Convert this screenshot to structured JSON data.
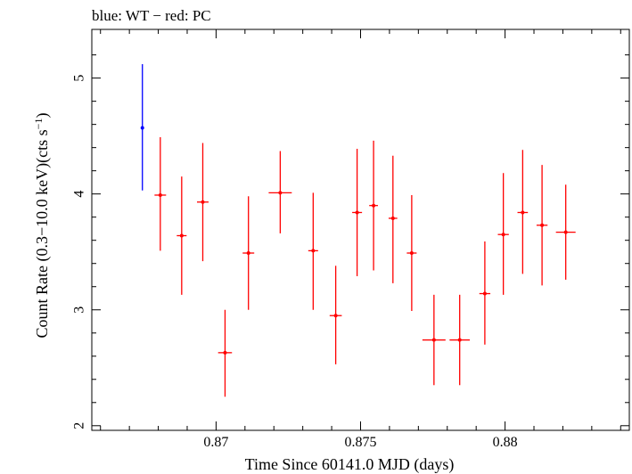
{
  "chart_data": {
    "type": "scatter",
    "title": "blue: WT − red: PC",
    "xlabel": "Time Since 60141.0 MJD (days)",
    "ylabel_main": "Count Rate (0.3−10.0 keV)(cts s",
    "ylabel_sup": "−1",
    "ylabel_tail": ")",
    "xlim": [
      0.8657,
      0.8843
    ],
    "ylim": [
      1.96,
      5.42
    ],
    "xticks": [
      0.87,
      0.875,
      0.88
    ],
    "xtick_labels": [
      "0.87",
      "0.875",
      "0.88"
    ],
    "yticks": [
      2,
      3,
      4,
      5
    ],
    "ytick_labels": [
      "2",
      "3",
      "4",
      "5"
    ],
    "grid": false,
    "series": [
      {
        "name": "WT",
        "color": "#0000ff",
        "points": [
          {
            "x": 0.86745,
            "xerr": 5e-05,
            "y": 4.57,
            "ylo": 4.03,
            "yhi": 5.12
          }
        ]
      },
      {
        "name": "PC",
        "color": "#ff0000",
        "points": [
          {
            "x": 0.86807,
            "xerr": 0.0002,
            "y": 3.99,
            "ylo": 3.51,
            "yhi": 4.49
          },
          {
            "x": 0.86881,
            "xerr": 0.00017,
            "y": 3.64,
            "ylo": 3.13,
            "yhi": 4.15
          },
          {
            "x": 0.86954,
            "xerr": 0.0002,
            "y": 3.93,
            "ylo": 3.42,
            "yhi": 4.44
          },
          {
            "x": 0.87031,
            "xerr": 0.00024,
            "y": 2.63,
            "ylo": 2.25,
            "yhi": 3.0
          },
          {
            "x": 0.87112,
            "xerr": 0.0002,
            "y": 3.49,
            "ylo": 3.0,
            "yhi": 3.98
          },
          {
            "x": 0.87222,
            "xerr": 0.0004,
            "y": 4.01,
            "ylo": 3.66,
            "yhi": 4.37
          },
          {
            "x": 0.87336,
            "xerr": 0.00017,
            "y": 3.51,
            "ylo": 3.0,
            "yhi": 4.01
          },
          {
            "x": 0.87414,
            "xerr": 0.00021,
            "y": 2.95,
            "ylo": 2.53,
            "yhi": 3.38
          },
          {
            "x": 0.87488,
            "xerr": 0.00017,
            "y": 3.84,
            "ylo": 3.29,
            "yhi": 4.39
          },
          {
            "x": 0.87545,
            "xerr": 0.00015,
            "y": 3.9,
            "ylo": 3.34,
            "yhi": 4.46
          },
          {
            "x": 0.87612,
            "xerr": 0.00015,
            "y": 3.79,
            "ylo": 3.23,
            "yhi": 4.33
          },
          {
            "x": 0.87677,
            "xerr": 0.00017,
            "y": 3.49,
            "ylo": 2.99,
            "yhi": 3.99
          },
          {
            "x": 0.87754,
            "xerr": 0.0004,
            "y": 2.74,
            "ylo": 2.35,
            "yhi": 3.13
          },
          {
            "x": 0.87843,
            "xerr": 0.00035,
            "y": 2.74,
            "ylo": 2.35,
            "yhi": 3.13
          },
          {
            "x": 0.8793,
            "xerr": 0.00019,
            "y": 3.14,
            "ylo": 2.7,
            "yhi": 3.59
          },
          {
            "x": 0.87994,
            "xerr": 0.00019,
            "y": 3.65,
            "ylo": 3.13,
            "yhi": 4.18
          },
          {
            "x": 0.88061,
            "xerr": 0.00018,
            "y": 3.84,
            "ylo": 3.31,
            "yhi": 4.38
          },
          {
            "x": 0.88128,
            "xerr": 0.00019,
            "y": 3.73,
            "ylo": 3.21,
            "yhi": 4.25
          },
          {
            "x": 0.8821,
            "xerr": 0.00034,
            "y": 3.67,
            "ylo": 3.26,
            "yhi": 4.08
          }
        ]
      }
    ]
  }
}
